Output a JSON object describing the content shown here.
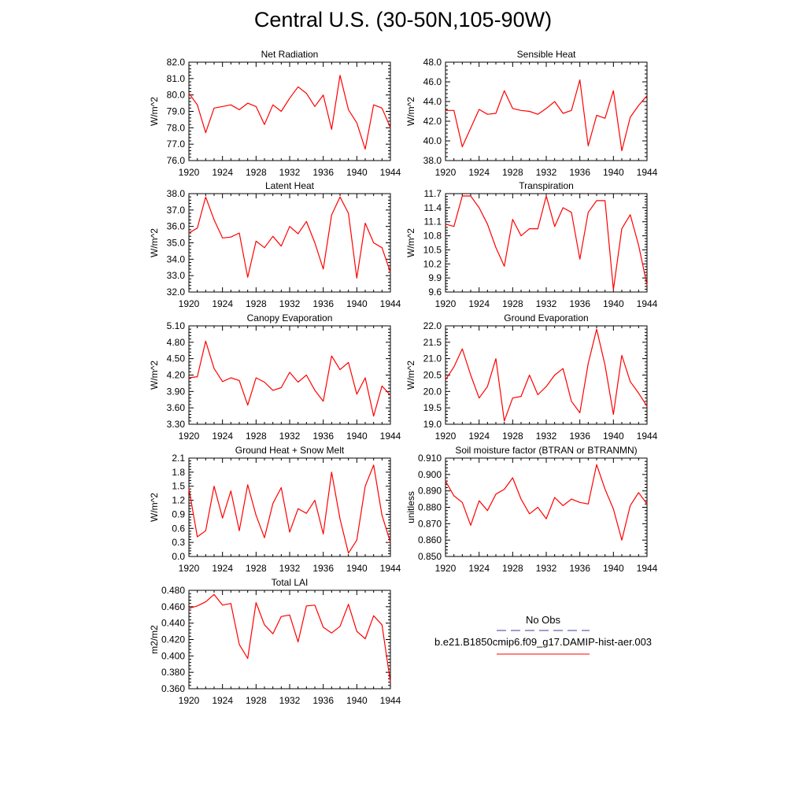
{
  "title": "Central U.S. (30-50N,105-90W)",
  "legend": {
    "obs_label": "No Obs",
    "model_label": "b.e21.B1850cmip6.f09_g17.DAMIP-hist-aer.003",
    "obs_color": "#3a3aa8",
    "model_color": "#ff0000"
  },
  "chart_data": [
    {
      "type": "line",
      "title": "Net Radiation",
      "ylabel": "W/m^2",
      "xlim": [
        1920,
        1944
      ],
      "ylim": [
        76.0,
        82.0
      ],
      "xticks": [
        "1920",
        "1924",
        "1928",
        "1932",
        "1936",
        "1940",
        "1944"
      ],
      "yticks": [
        "76.0",
        "77.0",
        "78.0",
        "79.0",
        "80.0",
        "81.0",
        "82.0"
      ],
      "series": [
        {
          "color": "#ff0000",
          "x": [
            1920,
            1921,
            1922,
            1923,
            1924,
            1925,
            1926,
            1927,
            1928,
            1929,
            1930,
            1931,
            1932,
            1933,
            1934,
            1935,
            1936,
            1937,
            1938,
            1939,
            1940,
            1941,
            1942,
            1943,
            1944
          ],
          "values": [
            80.1,
            79.4,
            77.7,
            79.2,
            79.3,
            79.4,
            79.1,
            79.5,
            79.3,
            78.2,
            79.4,
            79.0,
            79.8,
            80.5,
            80.1,
            79.3,
            80.0,
            77.9,
            81.2,
            79.1,
            78.3,
            76.7,
            79.4,
            79.2,
            78.0
          ]
        }
      ]
    },
    {
      "type": "line",
      "title": "Sensible Heat",
      "ylabel": "W/m^2",
      "xlim": [
        1920,
        1944
      ],
      "ylim": [
        38.0,
        48.0
      ],
      "xticks": [
        "1920",
        "1924",
        "1928",
        "1932",
        "1936",
        "1940",
        "1944"
      ],
      "yticks": [
        "38.0",
        "40.0",
        "42.0",
        "44.0",
        "46.0",
        "48.0"
      ],
      "series": [
        {
          "color": "#ff0000",
          "x": [
            1920,
            1921,
            1922,
            1923,
            1924,
            1925,
            1926,
            1927,
            1928,
            1929,
            1930,
            1931,
            1932,
            1933,
            1934,
            1935,
            1936,
            1937,
            1938,
            1939,
            1940,
            1941,
            1942,
            1943,
            1944
          ],
          "values": [
            43.1,
            43.1,
            39.4,
            41.3,
            43.2,
            42.7,
            42.8,
            45.1,
            43.3,
            43.1,
            43.0,
            42.7,
            43.3,
            44.0,
            42.8,
            43.1,
            46.2,
            39.5,
            42.6,
            42.3,
            45.1,
            39.0,
            42.4,
            43.6,
            44.6
          ]
        }
      ]
    },
    {
      "type": "line",
      "title": "Latent Heat",
      "ylabel": "W/m^2",
      "xlim": [
        1920,
        1944
      ],
      "ylim": [
        32.0,
        38.0
      ],
      "xticks": [
        "1920",
        "1924",
        "1928",
        "1932",
        "1936",
        "1940",
        "1944"
      ],
      "yticks": [
        "32.0",
        "33.0",
        "34.0",
        "35.0",
        "36.0",
        "37.0",
        "38.0"
      ],
      "series": [
        {
          "color": "#ff0000",
          "x": [
            1920,
            1921,
            1922,
            1923,
            1924,
            1925,
            1926,
            1927,
            1928,
            1929,
            1930,
            1931,
            1932,
            1933,
            1934,
            1935,
            1936,
            1937,
            1938,
            1939,
            1940,
            1941,
            1942,
            1943,
            1944
          ],
          "values": [
            35.6,
            35.9,
            37.8,
            36.4,
            35.3,
            35.35,
            35.6,
            32.9,
            35.1,
            34.7,
            35.4,
            34.8,
            36.0,
            35.55,
            36.3,
            35.0,
            33.4,
            36.7,
            37.8,
            36.8,
            32.85,
            36.2,
            35.0,
            34.7,
            33.2
          ]
        }
      ]
    },
    {
      "type": "line",
      "title": "Transpiration",
      "ylabel": "W/m^2",
      "xlim": [
        1920,
        1944
      ],
      "ylim": [
        9.6,
        11.7
      ],
      "xticks": [
        "1920",
        "1924",
        "1928",
        "1932",
        "1936",
        "1940",
        "1944"
      ],
      "yticks": [
        "9.6",
        "9.9",
        "10.2",
        "10.5",
        "10.8",
        "11.1",
        "11.4",
        "11.7"
      ],
      "series": [
        {
          "color": "#ff0000",
          "x": [
            1920,
            1921,
            1922,
            1923,
            1924,
            1925,
            1926,
            1927,
            1928,
            1929,
            1930,
            1931,
            1932,
            1933,
            1934,
            1935,
            1936,
            1937,
            1938,
            1939,
            1940,
            1941,
            1942,
            1943,
            1944
          ],
          "values": [
            11.05,
            11.0,
            11.65,
            11.65,
            11.4,
            11.05,
            10.55,
            10.15,
            11.15,
            10.8,
            10.95,
            10.95,
            11.65,
            11.0,
            11.4,
            11.3,
            10.3,
            11.3,
            11.55,
            11.55,
            9.65,
            10.95,
            11.25,
            10.6,
            9.75
          ]
        }
      ]
    },
    {
      "type": "line",
      "title": "Canopy Evaporation",
      "ylabel": "W/m^2",
      "xlim": [
        1920,
        1944
      ],
      "ylim": [
        3.3,
        5.1
      ],
      "xticks": [
        "1920",
        "1924",
        "1928",
        "1932",
        "1936",
        "1940",
        "1944"
      ],
      "yticks": [
        "3.30",
        "3.60",
        "3.90",
        "4.20",
        "4.50",
        "4.80",
        "5.10"
      ],
      "series": [
        {
          "color": "#ff0000",
          "x": [
            1920,
            1921,
            1922,
            1923,
            1924,
            1925,
            1926,
            1927,
            1928,
            1929,
            1930,
            1931,
            1932,
            1933,
            1934,
            1935,
            1936,
            1937,
            1938,
            1939,
            1940,
            1941,
            1942,
            1943,
            1944
          ],
          "values": [
            4.15,
            4.17,
            4.82,
            4.32,
            4.08,
            4.15,
            4.1,
            3.65,
            4.15,
            4.07,
            3.92,
            3.97,
            4.25,
            4.07,
            4.2,
            3.92,
            3.72,
            4.55,
            4.3,
            4.43,
            3.85,
            4.15,
            3.45,
            4.0,
            3.83
          ]
        }
      ]
    },
    {
      "type": "line",
      "title": "Ground Evaporation",
      "ylabel": "W/m^2",
      "xlim": [
        1920,
        1944
      ],
      "ylim": [
        19.0,
        22.0
      ],
      "xticks": [
        "1920",
        "1924",
        "1928",
        "1932",
        "1936",
        "1940",
        "1944"
      ],
      "yticks": [
        "19.0",
        "19.5",
        "20.0",
        "20.5",
        "21.0",
        "21.5",
        "22.0"
      ],
      "series": [
        {
          "color": "#ff0000",
          "x": [
            1920,
            1921,
            1922,
            1923,
            1924,
            1925,
            1926,
            1927,
            1928,
            1929,
            1930,
            1931,
            1932,
            1933,
            1934,
            1935,
            1936,
            1937,
            1938,
            1939,
            1940,
            1941,
            1942,
            1943,
            1944
          ],
          "values": [
            20.35,
            20.75,
            21.3,
            20.5,
            19.8,
            20.15,
            21.0,
            19.1,
            19.8,
            19.85,
            20.5,
            19.9,
            20.15,
            20.5,
            20.7,
            19.7,
            19.35,
            20.85,
            21.9,
            20.8,
            19.3,
            21.1,
            20.3,
            19.95,
            19.55
          ]
        }
      ]
    },
    {
      "type": "line",
      "title": "Ground Heat + Snow Melt",
      "ylabel": "W/m^2",
      "xlim": [
        1920,
        1944
      ],
      "ylim": [
        0.0,
        2.1
      ],
      "xticks": [
        "1920",
        "1924",
        "1928",
        "1932",
        "1936",
        "1940",
        "1944"
      ],
      "yticks": [
        "0.0",
        "0.3",
        "0.6",
        "0.9",
        "1.2",
        "1.5",
        "1.8",
        "2.1"
      ],
      "series": [
        {
          "color": "#ff0000",
          "x": [
            1920,
            1921,
            1922,
            1923,
            1924,
            1925,
            1926,
            1927,
            1928,
            1929,
            1930,
            1931,
            1932,
            1933,
            1934,
            1935,
            1936,
            1937,
            1938,
            1939,
            1940,
            1941,
            1942,
            1943,
            1944
          ],
          "values": [
            1.45,
            0.42,
            0.55,
            1.5,
            0.82,
            1.4,
            0.55,
            1.53,
            0.88,
            0.4,
            1.13,
            1.47,
            0.52,
            1.02,
            0.92,
            1.2,
            0.48,
            1.8,
            0.8,
            0.07,
            0.35,
            1.5,
            1.95,
            0.88,
            0.3
          ]
        }
      ]
    },
    {
      "type": "line",
      "title": "Soil moisture factor (BTRAN or BTRANMN)",
      "ylabel": "unitless",
      "xlim": [
        1920,
        1944
      ],
      "ylim": [
        0.85,
        0.91
      ],
      "xticks": [
        "1920",
        "1924",
        "1928",
        "1932",
        "1936",
        "1940",
        "1944"
      ],
      "yticks": [
        "0.850",
        "0.860",
        "0.870",
        "0.880",
        "0.890",
        "0.900",
        "0.910"
      ],
      "series": [
        {
          "color": "#ff0000",
          "x": [
            1920,
            1921,
            1922,
            1923,
            1924,
            1925,
            1926,
            1927,
            1928,
            1929,
            1930,
            1931,
            1932,
            1933,
            1934,
            1935,
            1936,
            1937,
            1938,
            1939,
            1940,
            1941,
            1942,
            1943,
            1944
          ],
          "values": [
            0.896,
            0.887,
            0.883,
            0.869,
            0.884,
            0.878,
            0.888,
            0.891,
            0.898,
            0.885,
            0.876,
            0.88,
            0.873,
            0.886,
            0.881,
            0.885,
            0.883,
            0.882,
            0.906,
            0.891,
            0.879,
            0.86,
            0.881,
            0.889,
            0.882
          ]
        }
      ]
    },
    {
      "type": "line",
      "title": "Total LAI",
      "ylabel": "m2/m2",
      "xlim": [
        1920,
        1944
      ],
      "ylim": [
        0.36,
        0.48
      ],
      "xticks": [
        "1920",
        "1924",
        "1928",
        "1932",
        "1936",
        "1940",
        "1944"
      ],
      "yticks": [
        "0.360",
        "0.380",
        "0.400",
        "0.420",
        "0.440",
        "0.460",
        "0.480"
      ],
      "series": [
        {
          "color": "#ff0000",
          "x": [
            1920,
            1921,
            1922,
            1923,
            1924,
            1925,
            1926,
            1927,
            1928,
            1929,
            1930,
            1931,
            1932,
            1933,
            1934,
            1935,
            1936,
            1937,
            1938,
            1939,
            1940,
            1941,
            1942,
            1943,
            1944
          ],
          "values": [
            0.458,
            0.461,
            0.466,
            0.475,
            0.462,
            0.464,
            0.414,
            0.397,
            0.465,
            0.438,
            0.427,
            0.448,
            0.45,
            0.417,
            0.461,
            0.462,
            0.435,
            0.428,
            0.436,
            0.463,
            0.43,
            0.421,
            0.449,
            0.438,
            0.368
          ]
        }
      ]
    }
  ]
}
